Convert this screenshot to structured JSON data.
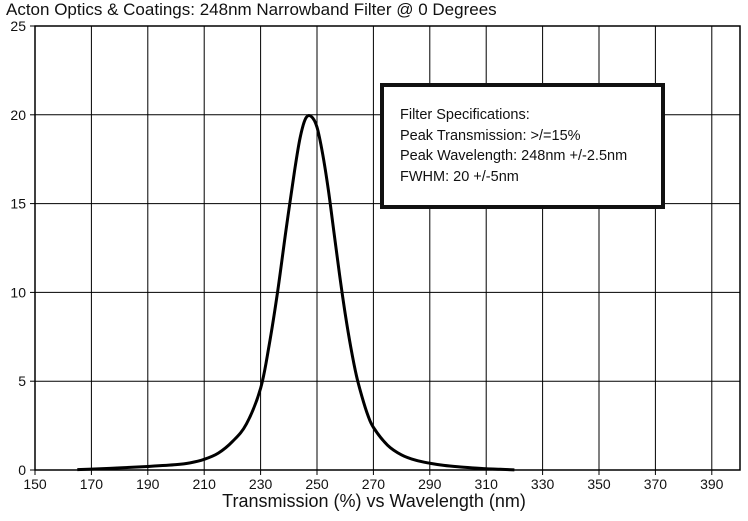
{
  "chart_data": {
    "type": "line",
    "title": "Acton Optics & Coatings: 248nm Narrowband Filter @ 0 Degrees",
    "xlabel": "Transmission (%) vs Wavelength (nm)",
    "ylabel": "",
    "xlim": [
      150,
      400
    ],
    "ylim": [
      0,
      25
    ],
    "xticks": [
      150,
      170,
      190,
      210,
      230,
      250,
      270,
      290,
      310,
      330,
      350,
      370,
      390
    ],
    "yticks": [
      0,
      5,
      10,
      15,
      20,
      25
    ],
    "grid": true,
    "series": [
      {
        "x": [
          165,
          170,
          180,
          190,
          200,
          205,
          210,
          215,
          220,
          225,
          230,
          233,
          236,
          239,
          242,
          244,
          246,
          248,
          250,
          252,
          254,
          256,
          258,
          260,
          262,
          264,
          266,
          268,
          270,
          275,
          280,
          285,
          290,
          295,
          300,
          305,
          310,
          315,
          320
        ],
        "y": [
          0.02,
          0.05,
          0.12,
          0.2,
          0.3,
          0.4,
          0.6,
          0.95,
          1.6,
          2.6,
          4.6,
          7.0,
          10.0,
          13.5,
          16.8,
          18.7,
          19.8,
          19.9,
          19.3,
          17.8,
          15.8,
          13.4,
          11.0,
          8.8,
          6.9,
          5.3,
          4.1,
          3.1,
          2.4,
          1.4,
          0.85,
          0.55,
          0.38,
          0.26,
          0.18,
          0.12,
          0.07,
          0.04,
          0.01
        ]
      }
    ],
    "annotations": [
      "Filter Specifications:",
      "Peak Transmission: >/=15%",
      "Peak Wavelength: 248nm +/-2.5nm",
      "FWHM: 20 +/-5nm"
    ]
  }
}
